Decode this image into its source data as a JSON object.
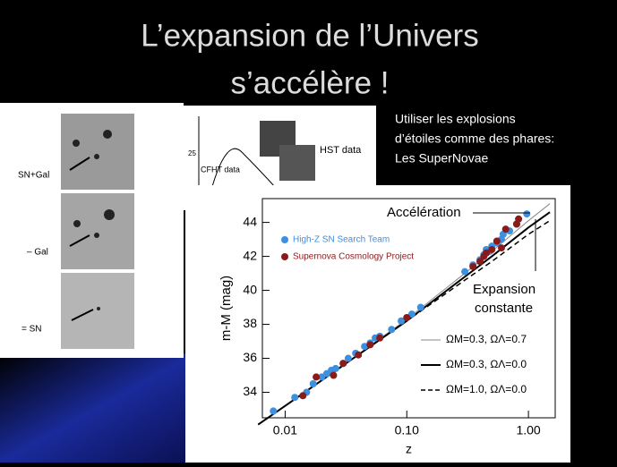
{
  "header": {
    "title_lines": [
      "L’expansion de l’Univers",
      "s’accélère !"
    ]
  },
  "side_text": [
    "Utiliser les explosions",
    "d’étoiles comme des phares:",
    "Les SuperNovae"
  ],
  "images": {
    "panel_labels": [
      "SN+Gal",
      "– Gal",
      "= SN"
    ],
    "light_curve_labels": [
      "CFHT data",
      "HST data",
      "25"
    ]
  },
  "chart_data": {
    "type": "scatter",
    "x_label": "z",
    "y_label": "m-M (mag)",
    "x_log": true,
    "xlim": [
      0.0065,
      1.66
    ],
    "ylim": [
      32.5,
      45.4
    ],
    "xticks": [
      0.01,
      {
        "value": 0.1,
        "label": "0.10"
      },
      {
        "value": 1,
        "label": "1.00"
      }
    ],
    "yticks": [
      34,
      36,
      38,
      40,
      42,
      44
    ],
    "annotations": [
      "Accélération",
      "Expansion",
      "constante"
    ],
    "series": [
      {
        "name": "High-Z SN Search Team",
        "color": "#3d8fe0",
        "x": [
          0.008,
          0.012,
          0.015,
          0.017,
          0.02,
          0.022,
          0.024,
          0.026,
          0.03,
          0.033,
          0.038,
          0.045,
          0.05,
          0.055,
          0.06,
          0.075,
          0.09,
          0.11,
          0.13,
          0.3,
          0.35,
          0.4,
          0.43,
          0.45,
          0.48,
          0.5,
          0.55,
          0.6,
          0.62,
          0.7,
          0.8,
          0.97
        ],
        "values": [
          32.9,
          33.7,
          34.0,
          34.5,
          34.9,
          35.1,
          35.3,
          35.4,
          35.7,
          36.0,
          36.3,
          36.7,
          36.9,
          37.2,
          37.3,
          37.7,
          38.2,
          38.6,
          39.0,
          41.1,
          41.5,
          41.8,
          42.1,
          42.4,
          42.3,
          42.6,
          42.8,
          43.0,
          43.3,
          43.5,
          43.9,
          44.5
        ]
      },
      {
        "name": "Supernova Cosmology Project",
        "color": "#8b1a1a",
        "x": [
          0.014,
          0.018,
          0.025,
          0.03,
          0.04,
          0.05,
          0.06,
          0.1,
          0.35,
          0.4,
          0.43,
          0.45,
          0.5,
          0.55,
          0.6,
          0.65,
          0.8,
          0.83
        ],
        "values": [
          33.8,
          34.9,
          35.0,
          35.7,
          36.2,
          36.8,
          37.2,
          38.4,
          41.4,
          41.7,
          42.0,
          42.2,
          42.4,
          42.9,
          42.5,
          43.6,
          43.9,
          44.2
        ]
      }
    ],
    "models": [
      {
        "name": "ΩM=0.3, ΩΛ=0.7",
        "color": "#888888",
        "width": 1,
        "dashed": false,
        "x": [
          0.006,
          0.01,
          0.03,
          0.1,
          0.3,
          0.5,
          1.0,
          1.5
        ],
        "values": [
          32.1,
          33.2,
          35.6,
          38.3,
          41.0,
          42.3,
          44.1,
          45.1
        ]
      },
      {
        "name": "ΩM=0.3, ΩΛ=0.0",
        "color": "#000000",
        "width": 2,
        "dashed": false,
        "x": [
          0.006,
          0.01,
          0.1,
          0.3,
          0.5,
          1.0,
          1.5
        ],
        "values": [
          32.1,
          33.2,
          38.2,
          40.8,
          42.0,
          43.7,
          44.6
        ]
      },
      {
        "name": "ΩM=1.0, ΩΛ=0.0",
        "color": "#000000",
        "width": 1.5,
        "dashed": true,
        "x": [
          0.006,
          0.01,
          0.1,
          0.3,
          0.5,
          1.0,
          1.5
        ],
        "values": [
          32.1,
          33.2,
          38.2,
          40.6,
          41.7,
          43.3,
          44.1
        ]
      }
    ]
  }
}
